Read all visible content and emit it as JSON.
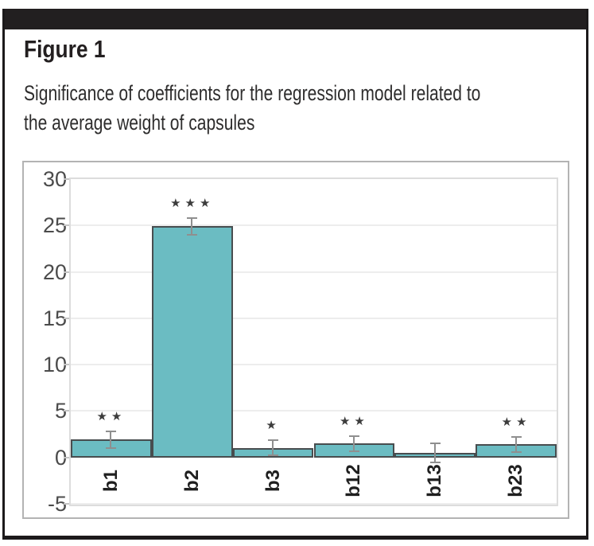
{
  "figure": {
    "label": "Figure 1",
    "caption_line1": "Significance of coefficients for the regression model related to",
    "caption_line2": "the average weight of capsules"
  },
  "chart_data": {
    "type": "bar",
    "title": "Significance of coefficients for the regression model related to the average weight of capsules",
    "xlabel": "",
    "ylabel": "",
    "categories": [
      "b1",
      "b2",
      "b3",
      "b12",
      "b13",
      "b23"
    ],
    "values": [
      1.9,
      24.9,
      1.0,
      1.5,
      0.5,
      1.4
    ],
    "errors": [
      1.0,
      1.0,
      0.9,
      0.9,
      1.1,
      0.9
    ],
    "significance": [
      "**",
      "***",
      "*",
      "**",
      "",
      "**"
    ],
    "yticks": [
      30,
      25,
      20,
      15,
      10,
      5,
      0,
      -5
    ],
    "ylim": [
      -5.1,
      30
    ],
    "grid": true,
    "legend": "none",
    "bar_color": "#6bbcc2",
    "bar_border_color": "#484d4f",
    "error_color": "#8f8f8f",
    "star_color": "#3c3c3c",
    "grid_color": "#ededed",
    "tick_label_color": "#4b4b4b"
  },
  "frame": {
    "band_color": "#221f20",
    "border_color": "#1c1a1b"
  }
}
